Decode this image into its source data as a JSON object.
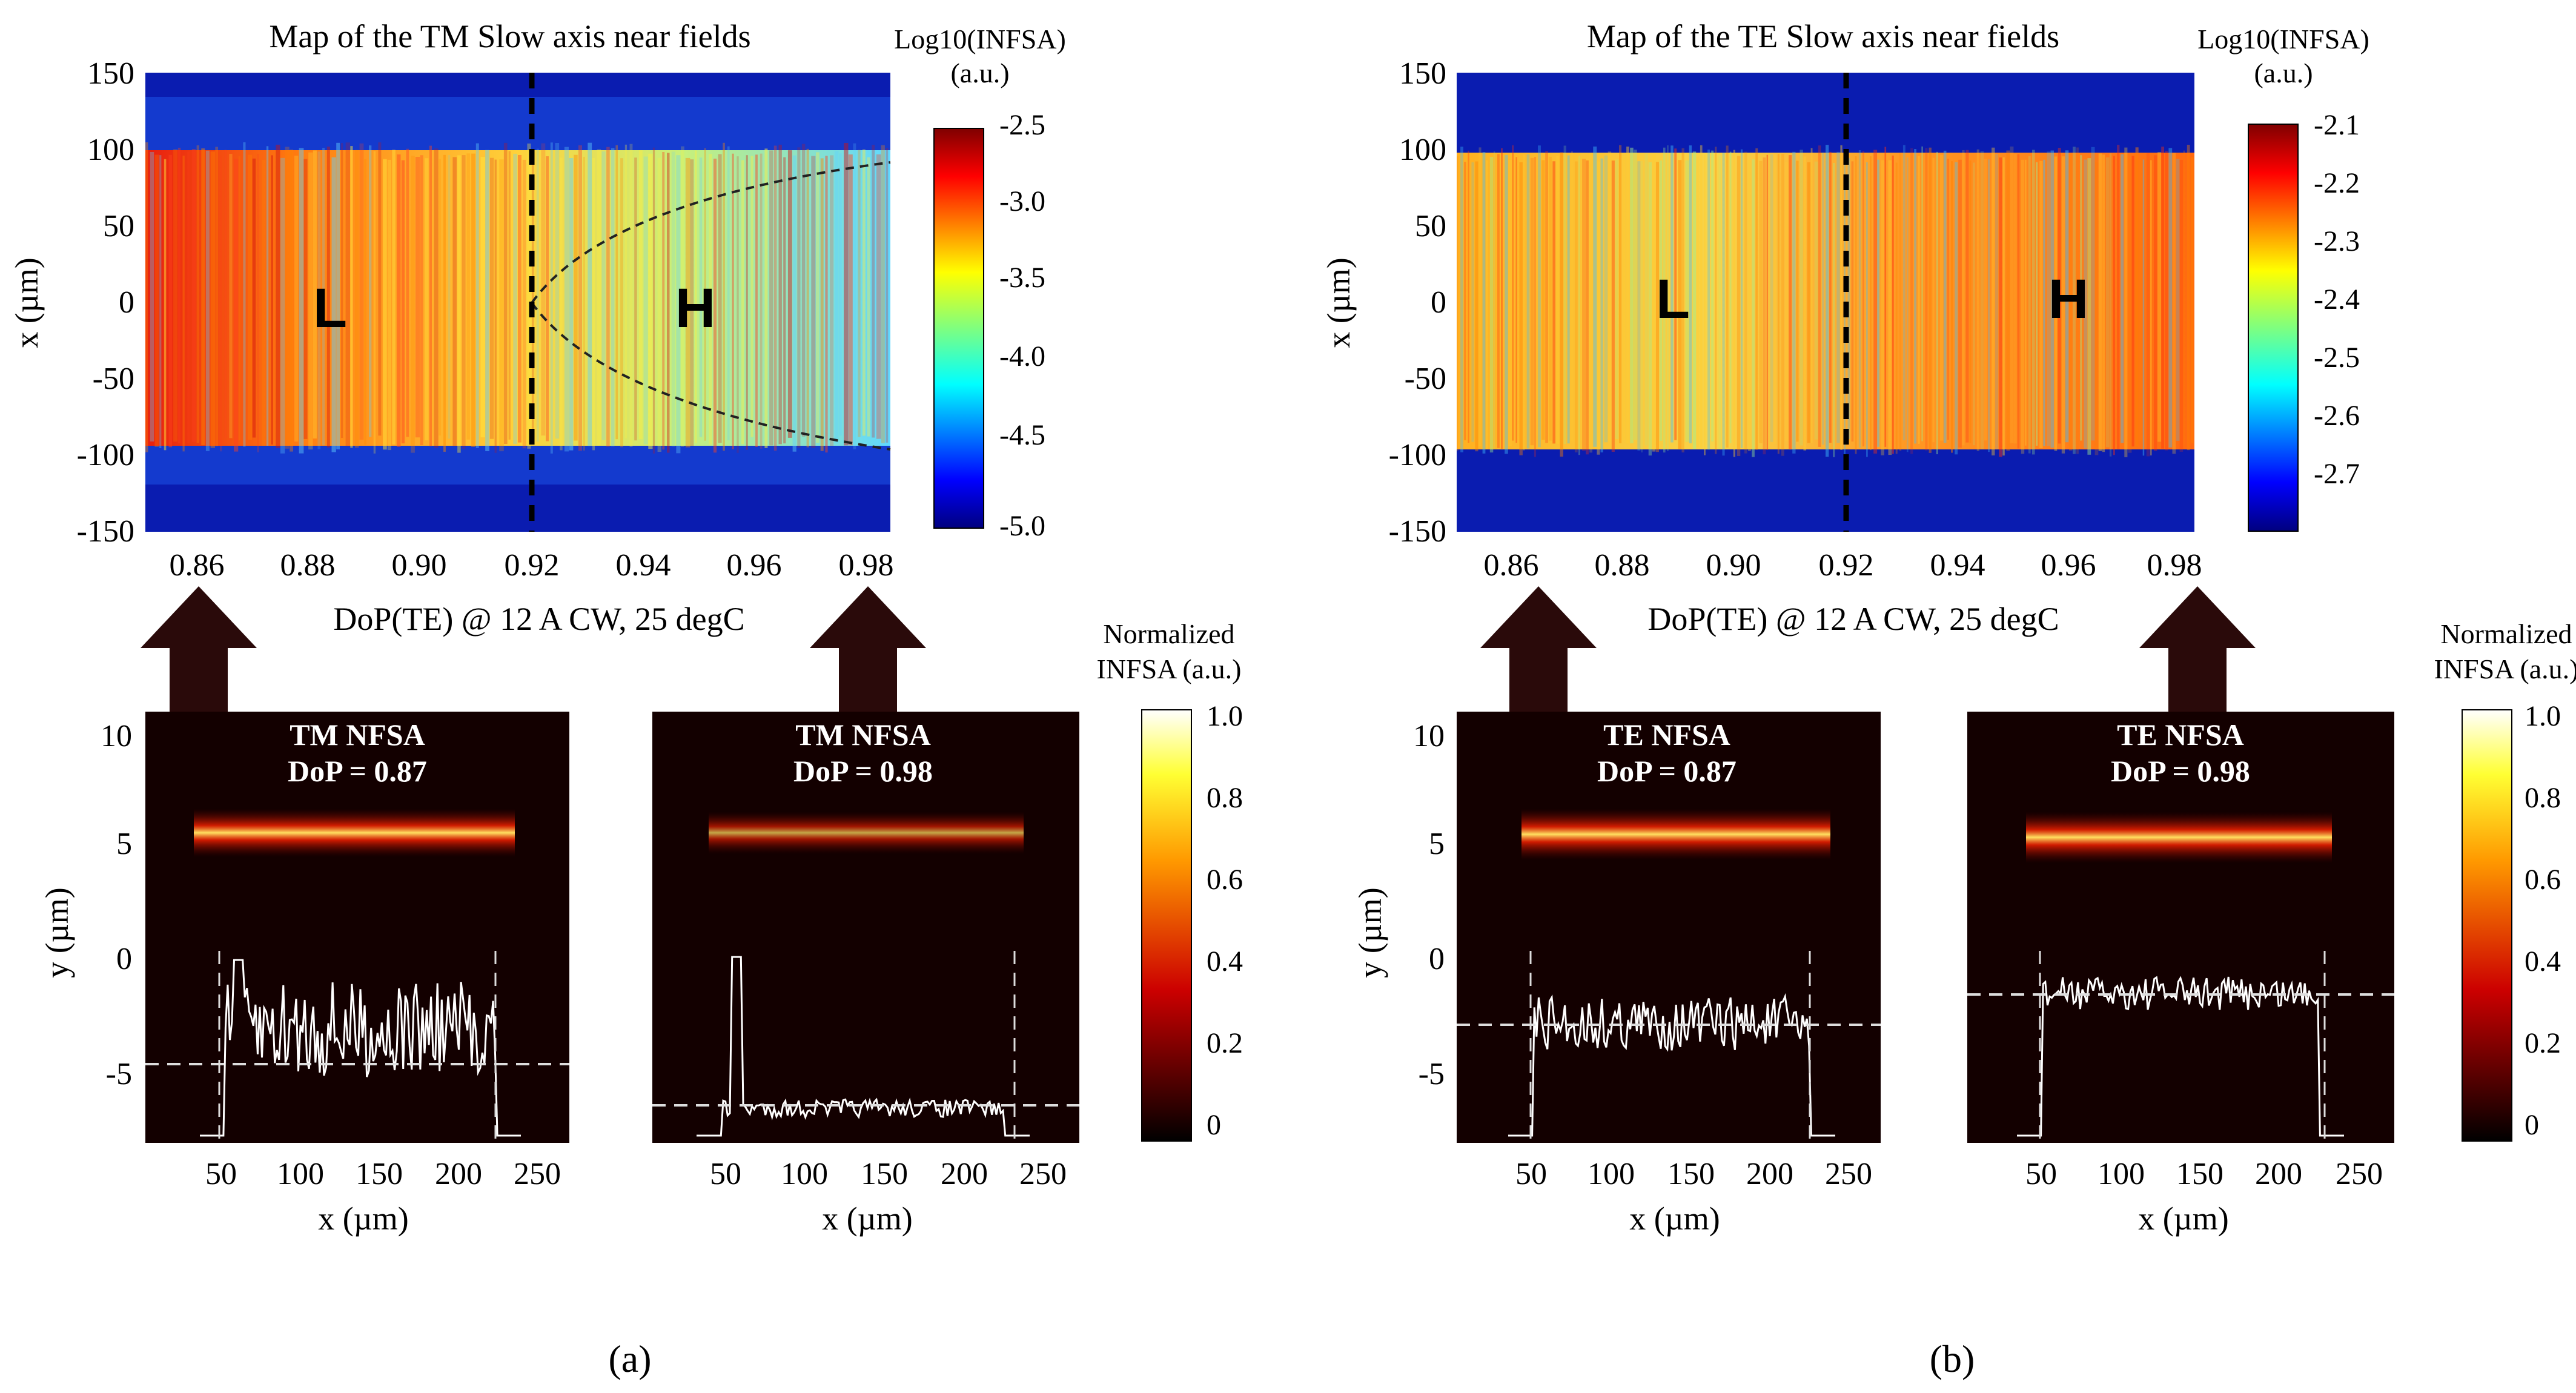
{
  "panel_a": {
    "label": "(a)",
    "map": {
      "title": "Map of the TM Slow axis near fields",
      "ylabel": "x (µm)",
      "xlabel": "DoP(TE) @ 12 A CW, 25 degC",
      "colorbar_title_line1": "Log10(INFSA)",
      "colorbar_title_line2": "(a.u.)",
      "region_low": "L",
      "region_high": "H"
    },
    "nf_left": {
      "title": "TM NFSA",
      "dop": "DoP = 0.87",
      "xlabel": "x (µm)",
      "ylabel": "y (µm)"
    },
    "nf_right": {
      "title": "TM NFSA",
      "dop": "DoP = 0.98",
      "xlabel": "x (µm)"
    },
    "colorbar_title_line1": "Normalized",
    "colorbar_title_line2": "INFSA (a.u.)"
  },
  "panel_b": {
    "label": "(b)",
    "map": {
      "title": "Map of the TE Slow axis near fields",
      "ylabel": "x (µm)",
      "xlabel": "DoP(TE) @ 12 A CW, 25 degC",
      "colorbar_title_line1": "Log10(INFSA)",
      "colorbar_title_line2": "(a.u.)",
      "region_low": "L",
      "region_high": "H"
    },
    "nf_left": {
      "title": "TE NFSA",
      "dop": "DoP = 0.87",
      "xlabel": "x (µm)",
      "ylabel": "y (µm)"
    },
    "nf_right": {
      "title": "TE NFSA",
      "dop": "DoP = 0.98",
      "xlabel": "x (µm)"
    },
    "colorbar_title_line1": "Normalized",
    "colorbar_title_line2": "INFSA (a.u.)"
  },
  "chart_data": [
    {
      "type": "heatmap",
      "title": "Map of the TM Slow axis near fields",
      "xlabel": "DoP(TE) @ 12 A CW, 25 degC",
      "ylabel": "x (µm)",
      "xlim": [
        0.85,
        0.98
      ],
      "ylim": [
        -150,
        150
      ],
      "xticks": [
        "0.86",
        "0.88",
        "0.90",
        "0.92",
        "0.94",
        "0.96",
        "0.98"
      ],
      "yticks": [
        "150",
        "100",
        "50",
        "0",
        "-50",
        "-100",
        "-150"
      ],
      "colorbar": {
        "label": "Log10(INFSA) (a.u.)",
        "range": [
          -5.0,
          -2.5
        ],
        "ticks": [
          "-2.5",
          "-3.0",
          "-3.5",
          "-4.0",
          "-4.5",
          "-5.0"
        ]
      },
      "divider_x": 0.92,
      "regions": [
        "L",
        "H"
      ],
      "emitter_half_width_um": 100
    },
    {
      "type": "heatmap",
      "title": "Map of the TE Slow axis near fields",
      "xlabel": "DoP(TE) @ 12 A CW, 25 degC",
      "ylabel": "x (µm)",
      "xlim": [
        0.85,
        0.98
      ],
      "ylim": [
        -150,
        150
      ],
      "xticks": [
        "0.86",
        "0.88",
        "0.90",
        "0.92",
        "0.94",
        "0.96",
        "0.98"
      ],
      "yticks": [
        "150",
        "100",
        "50",
        "0",
        "-50",
        "-100",
        "-150"
      ],
      "colorbar": {
        "label": "Log10(INFSA) (a.u.)",
        "range": [
          -2.8,
          -2.1
        ],
        "ticks": [
          "-2.1",
          "-2.2",
          "-2.3",
          "-2.4",
          "-2.5",
          "-2.6",
          "-2.7"
        ]
      },
      "divider_x": 0.92,
      "regions": [
        "L",
        "H"
      ],
      "emitter_half_width_um": 95
    },
    {
      "type": "heatmap",
      "title": "TM NFSA DoP = 0.87",
      "xlabel": "x (µm)",
      "ylabel": "y (µm)",
      "xticks": [
        "50",
        "100",
        "150",
        "200",
        "250"
      ],
      "yticks": [
        "10",
        "5",
        "0",
        "-5"
      ],
      "beam_y_um": 5.5,
      "profile_mean_y_um": -4.6
    },
    {
      "type": "heatmap",
      "title": "TM NFSA DoP = 0.98",
      "xlabel": "x (µm)",
      "xticks": [
        "50",
        "100",
        "150",
        "200",
        "250"
      ],
      "beam_y_um": 5.5,
      "profile_mean_y_um": -6.5
    },
    {
      "type": "heatmap",
      "title": "TE NFSA DoP = 0.87",
      "xlabel": "x (µm)",
      "ylabel": "y (µm)",
      "xticks": [
        "50",
        "100",
        "150",
        "200",
        "250"
      ],
      "yticks": [
        "10",
        "5",
        "0",
        "-5"
      ],
      "beam_y_um": 5.5,
      "profile_mean_y_um": -2.9
    },
    {
      "type": "heatmap",
      "title": "TE NFSA DoP = 0.98",
      "xlabel": "x (µm)",
      "xticks": [
        "50",
        "100",
        "150",
        "200",
        "250"
      ],
      "beam_y_um": 5.5,
      "profile_mean_y_um": -1.6
    },
    {
      "type": "colorbar",
      "label": "Normalized INFSA (a.u.)",
      "range": [
        0,
        1.0
      ],
      "ticks": [
        "1.0",
        "0.8",
        "0.6",
        "0.4",
        "0.2",
        "0"
      ]
    }
  ]
}
